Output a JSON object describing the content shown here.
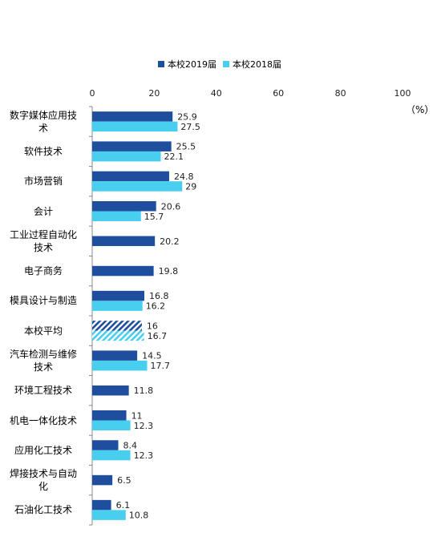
{
  "chart_data": {
    "type": "bar",
    "orientation": "horizontal",
    "unit_label": "（%）",
    "xlim": [
      0,
      100
    ],
    "x_ticks": [
      "0",
      "20",
      "40",
      "60",
      "80",
      "100"
    ],
    "categories": [
      "数字媒体应用技术",
      "软件技术",
      "市场营销",
      "会计",
      "工业过程自动化技术",
      "电子商务",
      "模具设计与制造",
      "本校平均",
      "汽车检测与维修技术",
      "环境工程技术",
      "机电一体化技术",
      "应用化工技术",
      "焊接技术与自动化",
      "石油化工技术"
    ],
    "category_labels": [
      [
        "数字媒体应用技",
        "术"
      ],
      [
        "软件技术"
      ],
      [
        "市场营销"
      ],
      [
        "会计"
      ],
      [
        "工业过程自动化",
        "技术"
      ],
      [
        "电子商务"
      ],
      [
        "模具设计与制造"
      ],
      [
        "本校平均"
      ],
      [
        "汽车检测与维修",
        "技术"
      ],
      [
        "环境工程技术"
      ],
      [
        "机电一体化技术"
      ],
      [
        "应用化工技术"
      ],
      [
        "焊接技术与自动",
        "化"
      ],
      [
        "石油化工技术"
      ]
    ],
    "highlight_category": "本校平均",
    "series": [
      {
        "name": "本校2019届",
        "color": "#1F4E9E",
        "values": [
          25.9,
          25.5,
          24.8,
          20.6,
          20.2,
          19.8,
          16.8,
          16,
          14.5,
          11.8,
          11,
          8.4,
          6.5,
          6.1
        ],
        "labels": [
          "25.9",
          "25.5",
          "24.8",
          "20.6",
          "20.2",
          "19.8",
          "16.8",
          "16",
          "14.5",
          "11.8",
          "11",
          "8.4",
          "6.5",
          "6.1"
        ]
      },
      {
        "name": "本校2018届",
        "color": "#48CFF0",
        "values": [
          27.5,
          22.1,
          29,
          15.7,
          null,
          null,
          16.2,
          16.7,
          17.7,
          null,
          12.3,
          12.3,
          null,
          10.8
        ],
        "labels": [
          "27.5",
          "22.1",
          "29",
          "15.7",
          null,
          null,
          "16.2",
          "16.7",
          "17.7",
          null,
          "12.3",
          "12.3",
          null,
          "10.8"
        ]
      }
    ],
    "legend_position": "top"
  }
}
